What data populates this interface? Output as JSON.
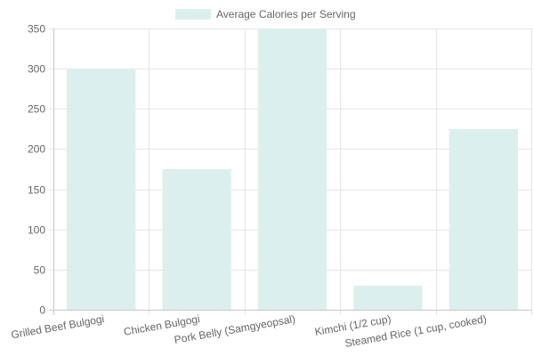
{
  "chart_data": {
    "type": "bar",
    "categories": [
      "Grilled Beef Bulgogi",
      "Chicken Bulgogi",
      "Pork Belly (Samgyeopsal)",
      "Kimchi (1/2 cup)",
      "Steamed Rice (1 cup, cooked)"
    ],
    "series": [
      {
        "name": "Average Calories per Serving",
        "values": [
          300,
          175,
          350,
          30,
          225
        ]
      }
    ],
    "ylim": [
      0,
      350
    ],
    "yticks": [
      "0",
      "50",
      "100",
      "150",
      "200",
      "250",
      "300",
      "350"
    ],
    "grid": true,
    "legend_position": "top",
    "colors": {
      "bar_fill": "#dbf0ee",
      "grid": "#e5e5e5",
      "axis": "#c8c8c8",
      "text": "#666666"
    }
  }
}
